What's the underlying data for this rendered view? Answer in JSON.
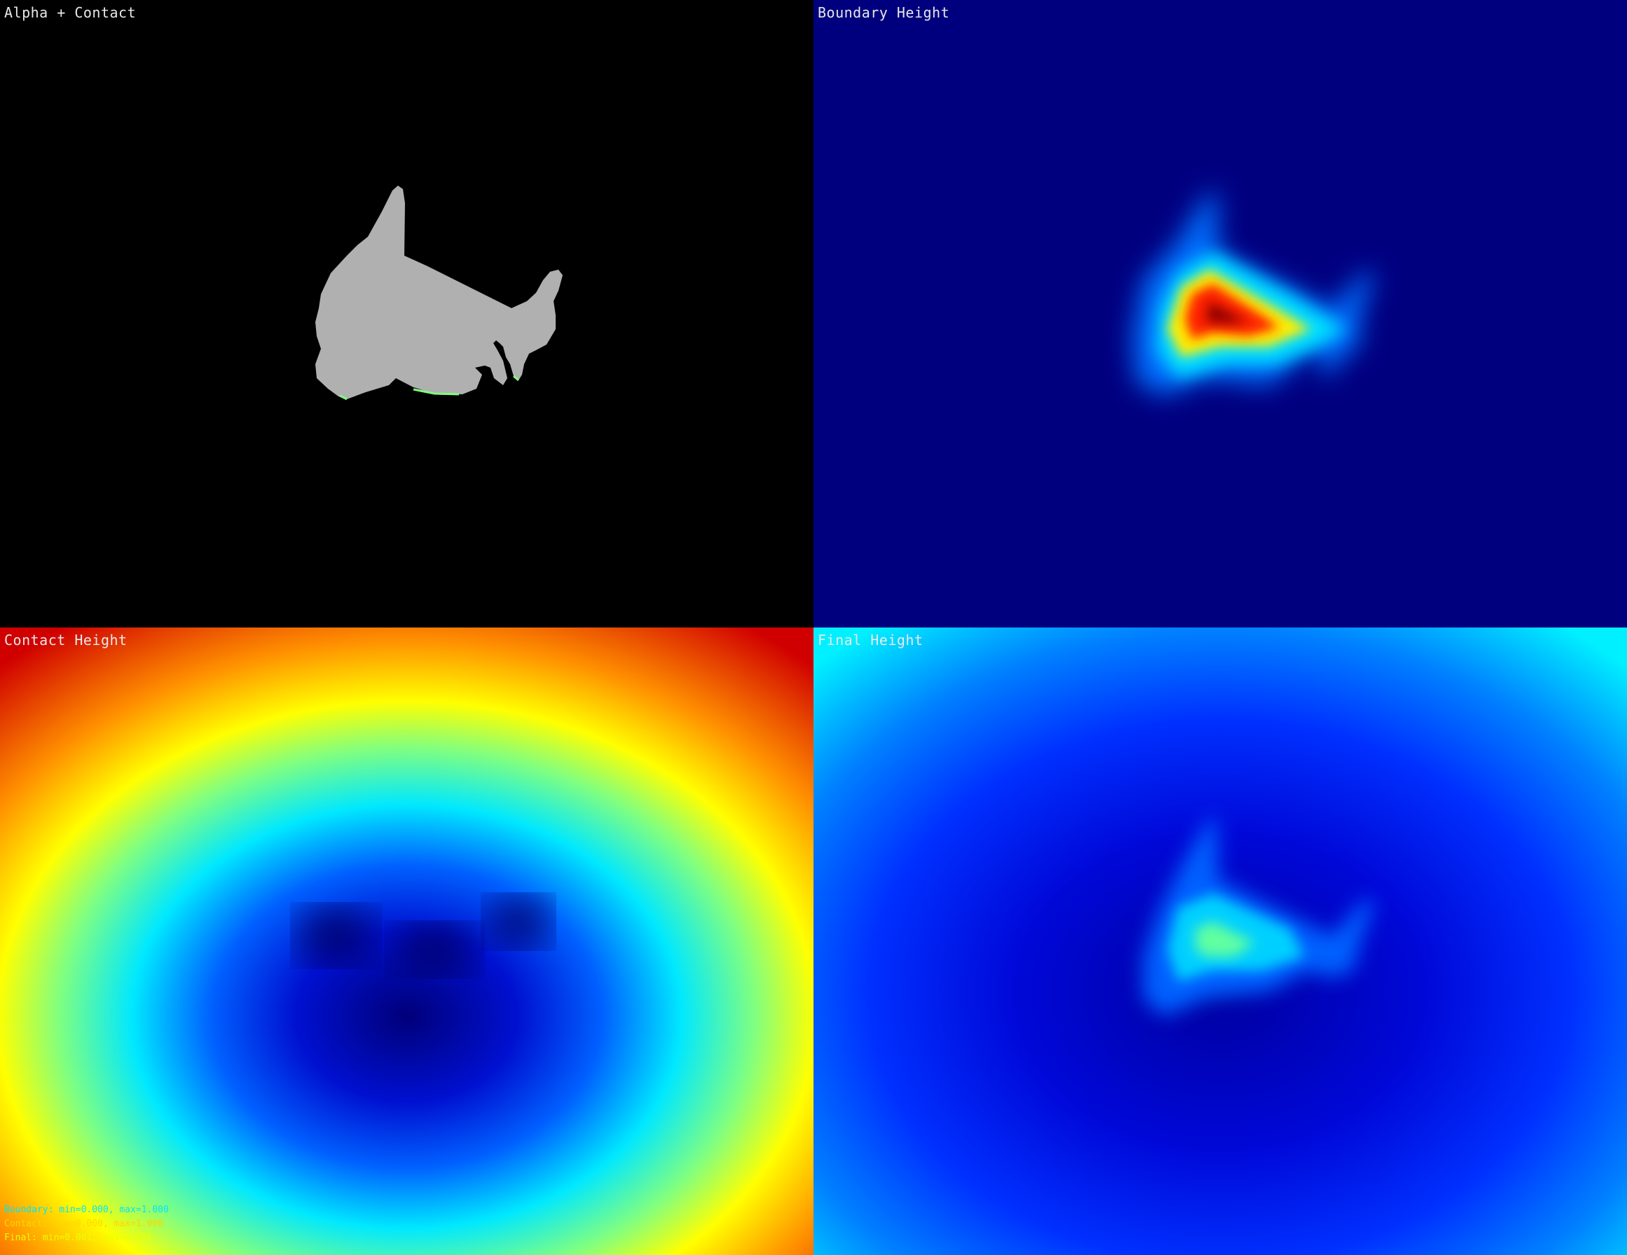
{
  "panels": {
    "alpha": {
      "title": "Alpha + Contact"
    },
    "boundary": {
      "title": "Boundary Height"
    },
    "contact": {
      "title": "Contact Height"
    },
    "final": {
      "title": "Final Height"
    }
  },
  "stats": [
    {
      "text": "Boundary: min=0.000, max=1.000",
      "color": "#00e5ff"
    },
    {
      "text": "Contact: min=0.000, max=1.000",
      "color": "#ffd400"
    },
    {
      "text": "Final: min=0.001, max=0.491",
      "color": "#e8ff00"
    }
  ],
  "colors": {
    "silhouette": "#b0b0b0",
    "contact_edge": "#7fff7f",
    "boundary_bg": "#00007f",
    "background": "#000000"
  }
}
